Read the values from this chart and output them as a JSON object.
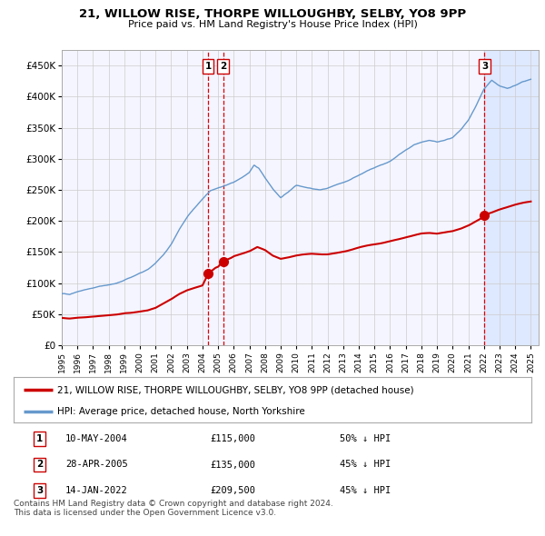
{
  "title": "21, WILLOW RISE, THORPE WILLOUGHBY, SELBY, YO8 9PP",
  "subtitle": "Price paid vs. HM Land Registry's House Price Index (HPI)",
  "xlim_start": 1995.0,
  "xlim_end": 2025.5,
  "ylim_min": 0,
  "ylim_max": 475000,
  "yticks": [
    0,
    50000,
    100000,
    150000,
    200000,
    250000,
    300000,
    350000,
    400000,
    450000
  ],
  "ytick_labels": [
    "£0",
    "£50K",
    "£100K",
    "£150K",
    "£200K",
    "£250K",
    "£300K",
    "£350K",
    "£400K",
    "£450K"
  ],
  "sale_dates": [
    2004.36,
    2005.32,
    2022.04
  ],
  "sale_prices": [
    115000,
    135000,
    209500
  ],
  "sale_labels": [
    "1",
    "2",
    "3"
  ],
  "red_color": "#cc0000",
  "blue_color": "#6699cc",
  "blue_fill": "#ddeeff",
  "vline_color": "#dd0000",
  "label_red": "21, WILLOW RISE, THORPE WILLOUGHBY, SELBY, YO8 9PP (detached house)",
  "label_blue": "HPI: Average price, detached house, North Yorkshire",
  "table_rows": [
    [
      "1",
      "10-MAY-2004",
      "£115,000",
      "50% ↓ HPI"
    ],
    [
      "2",
      "28-APR-2005",
      "£135,000",
      "45% ↓ HPI"
    ],
    [
      "3",
      "14-JAN-2022",
      "£209,500",
      "45% ↓ HPI"
    ]
  ],
  "footnote": "Contains HM Land Registry data © Crown copyright and database right 2024.\nThis data is licensed under the Open Government Licence v3.0.",
  "background_color": "#ffffff",
  "plot_bg_color": "#f5f5ff",
  "shaded_right_start": 2022.04,
  "hpi_anchors": [
    [
      1995.0,
      83000
    ],
    [
      1995.5,
      82000
    ],
    [
      1996.0,
      87000
    ],
    [
      1996.5,
      90000
    ],
    [
      1997.0,
      93000
    ],
    [
      1997.5,
      96000
    ],
    [
      1998.0,
      98000
    ],
    [
      1998.5,
      100000
    ],
    [
      1999.0,
      105000
    ],
    [
      1999.5,
      110000
    ],
    [
      2000.0,
      116000
    ],
    [
      2000.5,
      122000
    ],
    [
      2001.0,
      132000
    ],
    [
      2001.5,
      145000
    ],
    [
      2002.0,
      162000
    ],
    [
      2002.5,
      185000
    ],
    [
      2003.0,
      205000
    ],
    [
      2003.5,
      220000
    ],
    [
      2004.0,
      235000
    ],
    [
      2004.5,
      248000
    ],
    [
      2005.0,
      253000
    ],
    [
      2005.5,
      258000
    ],
    [
      2006.0,
      263000
    ],
    [
      2006.5,
      270000
    ],
    [
      2007.0,
      278000
    ],
    [
      2007.3,
      290000
    ],
    [
      2007.6,
      285000
    ],
    [
      2008.0,
      270000
    ],
    [
      2008.5,
      252000
    ],
    [
      2009.0,
      238000
    ],
    [
      2009.5,
      248000
    ],
    [
      2010.0,
      258000
    ],
    [
      2010.5,
      255000
    ],
    [
      2011.0,
      252000
    ],
    [
      2011.5,
      250000
    ],
    [
      2012.0,
      252000
    ],
    [
      2012.5,
      256000
    ],
    [
      2013.0,
      260000
    ],
    [
      2013.5,
      265000
    ],
    [
      2014.0,
      272000
    ],
    [
      2014.5,
      278000
    ],
    [
      2015.0,
      283000
    ],
    [
      2015.5,
      288000
    ],
    [
      2016.0,
      293000
    ],
    [
      2016.5,
      302000
    ],
    [
      2017.0,
      310000
    ],
    [
      2017.5,
      318000
    ],
    [
      2018.0,
      323000
    ],
    [
      2018.5,
      326000
    ],
    [
      2019.0,
      323000
    ],
    [
      2019.5,
      326000
    ],
    [
      2020.0,
      330000
    ],
    [
      2020.5,
      342000
    ],
    [
      2021.0,
      358000
    ],
    [
      2021.5,
      382000
    ],
    [
      2022.0,
      408000
    ],
    [
      2022.5,
      422000
    ],
    [
      2023.0,
      412000
    ],
    [
      2023.5,
      408000
    ],
    [
      2024.0,
      412000
    ],
    [
      2024.5,
      418000
    ],
    [
      2025.0,
      422000
    ]
  ],
  "red_anchors": [
    [
      1995.0,
      44000
    ],
    [
      1995.5,
      43000
    ],
    [
      1996.0,
      44500
    ],
    [
      1996.5,
      45000
    ],
    [
      1997.0,
      46000
    ],
    [
      1997.5,
      47000
    ],
    [
      1998.0,
      48000
    ],
    [
      1998.5,
      49000
    ],
    [
      1999.0,
      51000
    ],
    [
      1999.5,
      52000
    ],
    [
      2000.0,
      54000
    ],
    [
      2000.5,
      56000
    ],
    [
      2001.0,
      60000
    ],
    [
      2001.5,
      67000
    ],
    [
      2002.0,
      74000
    ],
    [
      2002.5,
      82000
    ],
    [
      2003.0,
      88000
    ],
    [
      2003.5,
      92000
    ],
    [
      2004.0,
      96000
    ],
    [
      2004.36,
      115000
    ],
    [
      2004.8,
      124000
    ],
    [
      2005.0,
      126000
    ],
    [
      2005.32,
      135000
    ],
    [
      2005.8,
      140000
    ],
    [
      2006.0,
      143000
    ],
    [
      2006.5,
      147000
    ],
    [
      2007.0,
      151000
    ],
    [
      2007.5,
      158000
    ],
    [
      2008.0,
      153000
    ],
    [
      2008.5,
      144000
    ],
    [
      2009.0,
      139000
    ],
    [
      2009.5,
      141000
    ],
    [
      2010.0,
      144000
    ],
    [
      2010.5,
      146000
    ],
    [
      2011.0,
      147000
    ],
    [
      2011.5,
      146000
    ],
    [
      2012.0,
      146000
    ],
    [
      2012.5,
      148000
    ],
    [
      2013.0,
      150000
    ],
    [
      2013.5,
      153000
    ],
    [
      2014.0,
      157000
    ],
    [
      2014.5,
      160000
    ],
    [
      2015.0,
      162000
    ],
    [
      2015.5,
      164000
    ],
    [
      2016.0,
      167000
    ],
    [
      2016.5,
      170000
    ],
    [
      2017.0,
      173000
    ],
    [
      2017.5,
      176000
    ],
    [
      2018.0,
      179000
    ],
    [
      2018.5,
      180000
    ],
    [
      2019.0,
      179000
    ],
    [
      2019.5,
      181000
    ],
    [
      2020.0,
      183000
    ],
    [
      2020.5,
      187000
    ],
    [
      2021.0,
      192000
    ],
    [
      2021.5,
      199000
    ],
    [
      2022.0,
      206000
    ],
    [
      2022.04,
      209500
    ],
    [
      2022.5,
      213000
    ],
    [
      2023.0,
      218000
    ],
    [
      2023.5,
      222000
    ],
    [
      2024.0,
      226000
    ],
    [
      2024.5,
      229000
    ],
    [
      2025.0,
      231000
    ]
  ]
}
